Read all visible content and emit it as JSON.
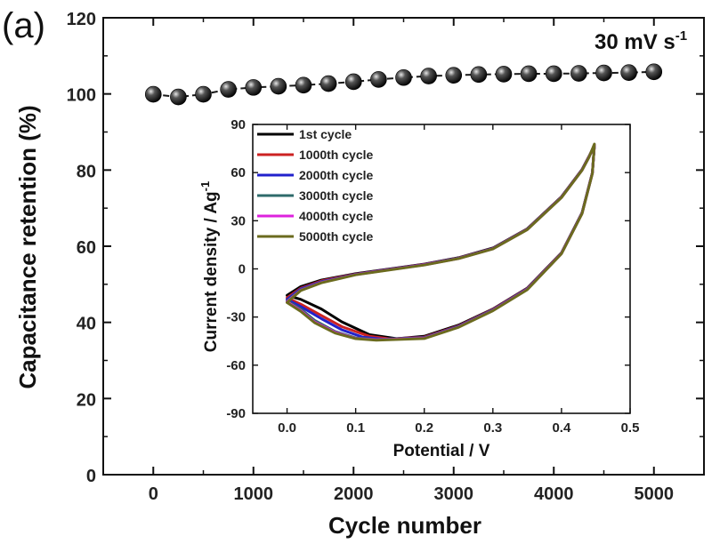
{
  "panel_label": "(a)",
  "chart_data": [
    {
      "type": "scatter",
      "annotation": {
        "text": "30 mV s",
        "superscript": "-1"
      },
      "xlabel": "Cycle number",
      "ylabel": "Capacitance retention (%)",
      "xlim": [
        -500,
        5500
      ],
      "ylim": [
        0,
        120
      ],
      "x_ticks": [
        0,
        1000,
        2000,
        3000,
        4000,
        5000
      ],
      "y_ticks": [
        0,
        20,
        40,
        60,
        80,
        100,
        120
      ],
      "series": [
        {
          "color": "#1a1a1a",
          "x": [
            0,
            250,
            500,
            750,
            1000,
            1250,
            1500,
            1750,
            2000,
            2250,
            2500,
            2750,
            3000,
            3250,
            3500,
            3750,
            4000,
            4250,
            4500,
            4750,
            5000
          ],
          "y": [
            99.9,
            99.2,
            99.9,
            101.2,
            101.7,
            102.0,
            102.3,
            102.7,
            103.2,
            103.8,
            104.3,
            104.7,
            104.9,
            105.1,
            105.2,
            105.3,
            105.3,
            105.4,
            105.5,
            105.6,
            105.8
          ]
        }
      ]
    },
    {
      "type": "line",
      "inset": true,
      "xlabel": "Potential / V",
      "ylabel": "Current density / Ag",
      "ylabel_superscript": "-1",
      "xlim": [
        -0.05,
        0.5
      ],
      "ylim": [
        -90,
        90
      ],
      "x_ticks": [
        "0.0",
        "0.1",
        "0.2",
        "0.3",
        "0.4",
        "0.5"
      ],
      "y_ticks": [
        "-90",
        "-60",
        "-30",
        "0",
        "30",
        "60",
        "90"
      ],
      "legend_position": "top-left",
      "series": [
        {
          "name": "1st cycle",
          "color": "#000000",
          "upper": [
            [
              0.0,
              -16.5
            ],
            [
              0.02,
              -11
            ],
            [
              0.05,
              -7
            ],
            [
              0.1,
              -3
            ],
            [
              0.15,
              0
            ],
            [
              0.2,
              3
            ],
            [
              0.25,
              7
            ],
            [
              0.3,
              13
            ],
            [
              0.35,
              25
            ],
            [
              0.4,
              45
            ],
            [
              0.43,
              62
            ],
            [
              0.44,
              70
            ],
            [
              0.448,
              77
            ]
          ],
          "lower": [
            [
              0.448,
              77
            ],
            [
              0.445,
              60
            ],
            [
              0.43,
              35
            ],
            [
              0.4,
              10
            ],
            [
              0.35,
              -12
            ],
            [
              0.3,
              -25
            ],
            [
              0.25,
              -35
            ],
            [
              0.2,
              -42
            ],
            [
              0.16,
              -43.5
            ],
            [
              0.12,
              -41
            ],
            [
              0.08,
              -33
            ],
            [
              0.05,
              -25
            ],
            [
              0.02,
              -19
            ],
            [
              0.0,
              -16.5
            ]
          ]
        },
        {
          "name": "1000th cycle",
          "color": "#cc2222",
          "upper": [
            [
              0.0,
              -18
            ],
            [
              0.02,
              -12
            ],
            [
              0.05,
              -7.5
            ],
            [
              0.1,
              -3.2
            ],
            [
              0.15,
              -0.2
            ],
            [
              0.2,
              2.8
            ],
            [
              0.25,
              6.8
            ],
            [
              0.3,
              12.8
            ],
            [
              0.35,
              24.8
            ],
            [
              0.4,
              44.8
            ],
            [
              0.43,
              61.8
            ],
            [
              0.44,
              69.8
            ],
            [
              0.448,
              76.8
            ]
          ],
          "lower": [
            [
              0.448,
              76.8
            ],
            [
              0.445,
              59.8
            ],
            [
              0.43,
              34.8
            ],
            [
              0.4,
              9.8
            ],
            [
              0.35,
              -12.2
            ],
            [
              0.3,
              -25.2
            ],
            [
              0.25,
              -35.5
            ],
            [
              0.2,
              -42.5
            ],
            [
              0.15,
              -43.6
            ],
            [
              0.12,
              -42
            ],
            [
              0.08,
              -36
            ],
            [
              0.05,
              -29
            ],
            [
              0.02,
              -22
            ],
            [
              0.0,
              -18
            ]
          ]
        },
        {
          "name": "2000th cycle",
          "color": "#2222cc",
          "upper": [
            [
              0.0,
              -19
            ],
            [
              0.02,
              -12.5
            ],
            [
              0.05,
              -8
            ],
            [
              0.1,
              -3.4
            ],
            [
              0.15,
              -0.3
            ],
            [
              0.2,
              2.7
            ],
            [
              0.25,
              6.7
            ],
            [
              0.3,
              12.7
            ],
            [
              0.35,
              24.7
            ],
            [
              0.4,
              44.7
            ],
            [
              0.43,
              61.7
            ],
            [
              0.44,
              69.7
            ],
            [
              0.448,
              76.9
            ]
          ],
          "lower": [
            [
              0.448,
              76.9
            ],
            [
              0.445,
              59.7
            ],
            [
              0.43,
              34.7
            ],
            [
              0.4,
              9.7
            ],
            [
              0.35,
              -12.4
            ],
            [
              0.3,
              -25.5
            ],
            [
              0.25,
              -35.8
            ],
            [
              0.2,
              -42.8
            ],
            [
              0.14,
              -43.8
            ],
            [
              0.11,
              -42.5
            ],
            [
              0.08,
              -38
            ],
            [
              0.05,
              -31
            ],
            [
              0.02,
              -23.5
            ],
            [
              0.0,
              -19
            ]
          ]
        },
        {
          "name": "3000th cycle",
          "color": "#2e6b6b",
          "upper": [
            [
              0.0,
              -20
            ],
            [
              0.02,
              -13
            ],
            [
              0.05,
              -8.3
            ],
            [
              0.1,
              -3.5
            ],
            [
              0.15,
              -0.4
            ],
            [
              0.2,
              2.6
            ],
            [
              0.25,
              6.6
            ],
            [
              0.3,
              12.6
            ],
            [
              0.35,
              24.6
            ],
            [
              0.4,
              44.6
            ],
            [
              0.43,
              61.6
            ],
            [
              0.44,
              69.6
            ],
            [
              0.448,
              77.2
            ]
          ],
          "lower": [
            [
              0.448,
              77.2
            ],
            [
              0.445,
              59.6
            ],
            [
              0.43,
              34.6
            ],
            [
              0.4,
              9.6
            ],
            [
              0.35,
              -12.6
            ],
            [
              0.3,
              -25.7
            ],
            [
              0.25,
              -36
            ],
            [
              0.2,
              -43
            ],
            [
              0.13,
              -44
            ],
            [
              0.1,
              -43
            ],
            [
              0.07,
              -39
            ],
            [
              0.04,
              -32
            ],
            [
              0.02,
              -25
            ],
            [
              0.0,
              -20
            ]
          ]
        },
        {
          "name": "4000th cycle",
          "color": "#dd22dd",
          "upper": [
            [
              0.0,
              -20.5
            ],
            [
              0.02,
              -13.3
            ],
            [
              0.05,
              -8.5
            ],
            [
              0.1,
              -3.6
            ],
            [
              0.15,
              -0.5
            ],
            [
              0.2,
              2.5
            ],
            [
              0.25,
              6.5
            ],
            [
              0.3,
              12.5
            ],
            [
              0.35,
              24.5
            ],
            [
              0.4,
              44.5
            ],
            [
              0.43,
              61.5
            ],
            [
              0.44,
              69.5
            ],
            [
              0.448,
              77.5
            ]
          ],
          "lower": [
            [
              0.448,
              77.5
            ],
            [
              0.445,
              59.5
            ],
            [
              0.43,
              34.5
            ],
            [
              0.4,
              9.5
            ],
            [
              0.35,
              -12.8
            ],
            [
              0.3,
              -25.9
            ],
            [
              0.25,
              -36.2
            ],
            [
              0.2,
              -43.2
            ],
            [
              0.13,
              -44.2
            ],
            [
              0.1,
              -43.3
            ],
            [
              0.07,
              -39.5
            ],
            [
              0.04,
              -33
            ],
            [
              0.02,
              -26
            ],
            [
              0.0,
              -20.5
            ]
          ]
        },
        {
          "name": "5000th cycle",
          "color": "#6b6b1e",
          "upper": [
            [
              0.0,
              -21
            ],
            [
              0.02,
              -13.5
            ],
            [
              0.05,
              -8.7
            ],
            [
              0.1,
              -3.7
            ],
            [
              0.15,
              -0.6
            ],
            [
              0.2,
              2.4
            ],
            [
              0.25,
              6.4
            ],
            [
              0.3,
              12.4
            ],
            [
              0.35,
              24.4
            ],
            [
              0.4,
              44.4
            ],
            [
              0.43,
              61.4
            ],
            [
              0.44,
              69.4
            ],
            [
              0.448,
              77.8
            ]
          ],
          "lower": [
            [
              0.448,
              77.8
            ],
            [
              0.445,
              59.4
            ],
            [
              0.43,
              34.4
            ],
            [
              0.4,
              9.4
            ],
            [
              0.35,
              -13
            ],
            [
              0.3,
              -26.1
            ],
            [
              0.25,
              -36.4
            ],
            [
              0.2,
              -43.4
            ],
            [
              0.13,
              -44.4
            ],
            [
              0.1,
              -43.5
            ],
            [
              0.07,
              -40
            ],
            [
              0.04,
              -33.5
            ],
            [
              0.02,
              -26.5
            ],
            [
              0.0,
              -21
            ]
          ]
        }
      ]
    }
  ]
}
